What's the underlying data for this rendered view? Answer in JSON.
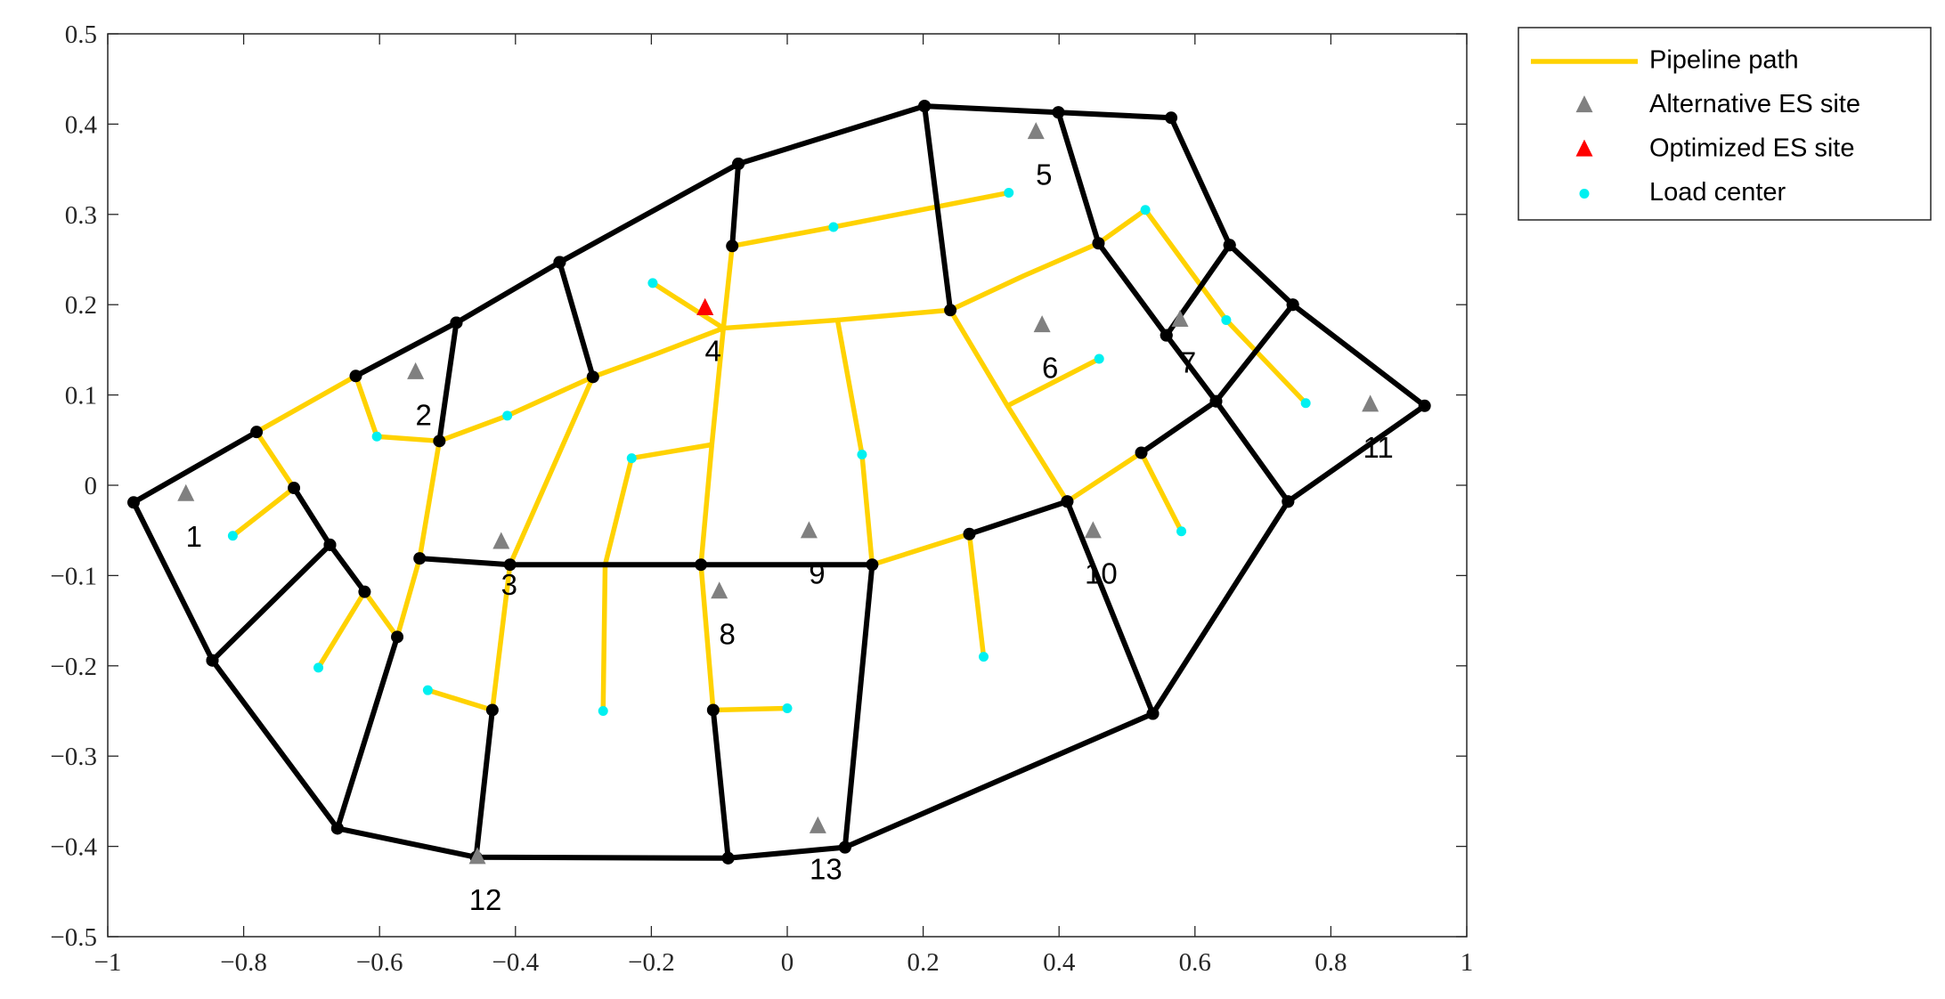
{
  "chart_data": {
    "type": "network",
    "xlim": [
      -1,
      1
    ],
    "ylim": [
      -0.5,
      0.5
    ],
    "xticks": [
      {
        "value": -1,
        "label": "−1"
      },
      {
        "value": -0.8,
        "label": "−0.8"
      },
      {
        "value": -0.6,
        "label": "−0.6"
      },
      {
        "value": -0.4,
        "label": "−0.4"
      },
      {
        "value": -0.2,
        "label": "−0.2"
      },
      0,
      0.2,
      0.4,
      0.6,
      0.8,
      1
    ],
    "yticks": [
      {
        "value": -0.5,
        "label": "−0.5"
      },
      {
        "value": -0.4,
        "label": "−0.4"
      },
      {
        "value": -0.3,
        "label": "−0.3"
      },
      {
        "value": -0.2,
        "label": "−0.2"
      },
      {
        "value": -0.1,
        "label": "−0.1"
      },
      0,
      0.1,
      0.2,
      0.3,
      0.4,
      0.5
    ],
    "legend": "outside-upper-right",
    "series": [
      {
        "name": "Pipeline path",
        "type": "line",
        "color": "#ffd200",
        "x": [
          -0.816,
          -0.726,
          -0.781,
          -0.635,
          -0.604,
          -0.512,
          -0.412,
          -0.286,
          -0.191,
          -0.094,
          null,
          -0.512,
          -0.541,
          -0.574,
          -0.622,
          -0.69,
          null,
          -0.286,
          -0.408,
          -0.434,
          -0.529,
          null,
          -0.198,
          -0.094,
          null,
          -0.094,
          -0.081,
          0.068,
          0.326,
          null,
          -0.094,
          -0.111,
          -0.127,
          -0.109,
          0,
          null,
          -0.111,
          -0.229,
          -0.268,
          -0.271,
          null,
          -0.094,
          0.074,
          0.24,
          0.348,
          0.458,
          0.527,
          0.646,
          0.763,
          null,
          0.074,
          0.11,
          0.125,
          0.268,
          0.289,
          null,
          0.24,
          0.324,
          0.412,
          0.521,
          0.58,
          null,
          0.324,
          0.459
        ],
        "y": [
          -0.056,
          -0.003,
          0.059,
          0.121,
          0.054,
          0.049,
          0.077,
          0.12,
          0.146,
          0.174,
          null,
          0.049,
          -0.081,
          -0.168,
          -0.118,
          -0.202,
          null,
          0.12,
          -0.088,
          -0.249,
          -0.227,
          null,
          0.224,
          0.174,
          null,
          0.174,
          0.265,
          0.286,
          0.324,
          null,
          0.174,
          0.045,
          -0.088,
          -0.249,
          -0.247,
          null,
          0.045,
          0.03,
          -0.088,
          -0.25,
          null,
          0.174,
          0.183,
          0.194,
          0.232,
          0.268,
          0.305,
          0.183,
          0.091,
          null,
          0.183,
          0.034,
          -0.088,
          -0.054,
          -0.19,
          null,
          0.194,
          0.088,
          -0.018,
          0.036,
          -0.051,
          null,
          0.088,
          0.14
        ]
      },
      {
        "type": "line",
        "color": "#000000",
        "marker": "dot",
        "x": [
          -0.781,
          -0.962,
          -0.846,
          -0.662,
          -0.458,
          -0.087,
          0.085,
          0.538,
          0.737,
          0.938,
          0.744,
          0.651,
          0.565,
          0.399,
          0.202,
          -0.072,
          -0.335,
          -0.487,
          -0.635,
          null,
          -0.846,
          -0.673,
          -0.726,
          null,
          -0.673,
          -0.622,
          null,
          -0.662,
          -0.574,
          null,
          -0.541,
          -0.408,
          -0.127,
          0.125,
          0.085,
          null,
          -0.458,
          -0.434,
          null,
          -0.087,
          -0.109,
          null,
          -0.487,
          -0.512,
          null,
          -0.335,
          -0.286,
          null,
          -0.072,
          -0.081,
          null,
          0.202,
          0.24,
          null,
          0.399,
          0.458,
          0.558,
          0.631,
          0.737,
          null,
          0.651,
          0.558,
          null,
          0.744,
          0.631,
          0.521,
          null,
          0.412,
          0.538,
          null,
          0.412,
          0.268
        ],
        "y": [
          0.059,
          -0.019,
          -0.194,
          -0.38,
          -0.412,
          -0.413,
          -0.401,
          -0.253,
          -0.018,
          0.088,
          0.2,
          0.266,
          0.407,
          0.413,
          0.42,
          0.356,
          0.247,
          0.18,
          0.121,
          null,
          -0.194,
          -0.066,
          -0.003,
          null,
          -0.066,
          -0.118,
          null,
          -0.38,
          -0.168,
          null,
          -0.081,
          -0.088,
          -0.088,
          -0.088,
          -0.401,
          null,
          -0.412,
          -0.249,
          null,
          -0.413,
          -0.249,
          null,
          0.18,
          0.049,
          null,
          0.247,
          0.12,
          null,
          0.356,
          0.265,
          null,
          0.42,
          0.194,
          null,
          0.413,
          0.268,
          0.166,
          0.093,
          -0.018,
          null,
          0.266,
          0.166,
          null,
          0.2,
          0.093,
          0.036,
          null,
          -0.018,
          -0.253,
          null,
          -0.018,
          -0.054
        ]
      },
      {
        "name": "Alternative ES site",
        "type": "triangle",
        "color": "#808080",
        "x": [
          -0.885,
          -0.547,
          -0.421,
          -0.121,
          0.366,
          0.375,
          0.578,
          -0.1,
          0.032,
          0.45,
          0.858,
          -0.456,
          0.045
        ],
        "y": [
          -0.01,
          0.125,
          -0.063,
          0.196,
          0.391,
          0.177,
          0.183,
          -0.118,
          -0.051,
          -0.051,
          0.089,
          -0.412,
          -0.378
        ],
        "labels": [
          1,
          2,
          3,
          4,
          5,
          6,
          7,
          8,
          9,
          10,
          11,
          12,
          13
        ]
      },
      {
        "name": "Optimized ES site",
        "type": "triangle",
        "color": "#ff0000",
        "x": [
          -0.121
        ],
        "y": [
          0.196
        ]
      },
      {
        "name": "Load center",
        "type": "dot",
        "color": "#00f0f0",
        "x": [
          -0.816,
          -0.69,
          -0.604,
          -0.529,
          -0.412,
          -0.271,
          -0.229,
          -0.198,
          0,
          0.068,
          0.11,
          0.289,
          0.326,
          0.459,
          0.527,
          0.58,
          0.646,
          0.763
        ],
        "y": [
          -0.056,
          -0.202,
          0.054,
          -0.227,
          0.077,
          -0.25,
          0.03,
          0.224,
          -0.247,
          0.286,
          0.034,
          -0.19,
          0.324,
          0.14,
          0.305,
          -0.051,
          0.183,
          0.091
        ]
      }
    ]
  }
}
